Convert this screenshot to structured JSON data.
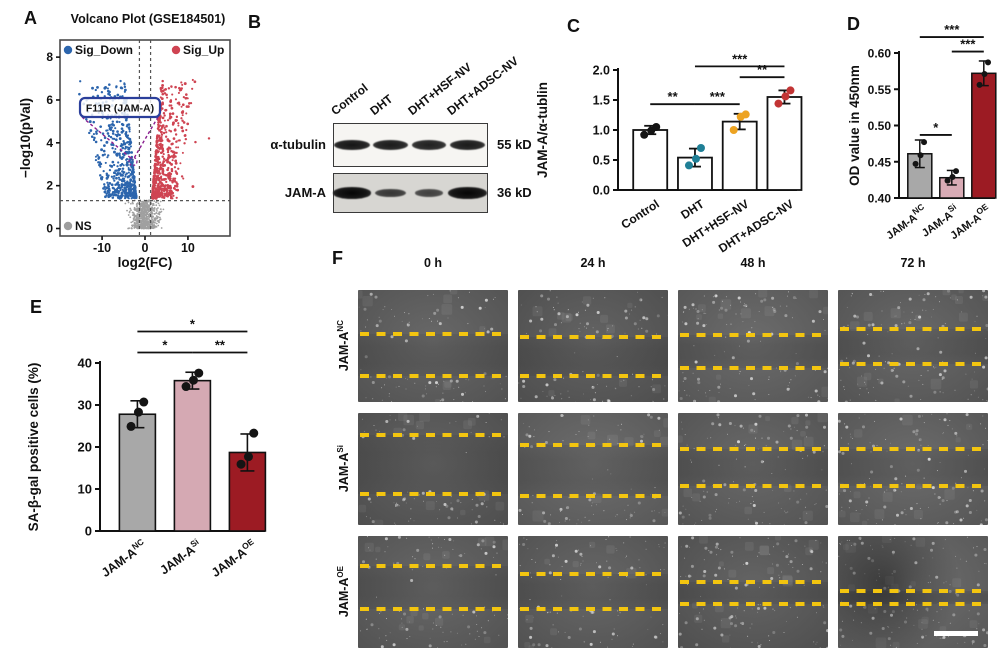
{
  "panels": {
    "A": {
      "label": "A",
      "title": "Volcano Plot (GSE184501)",
      "legend": [
        {
          "label": "Sig_Down",
          "color": "#2c65ad"
        },
        {
          "label": "Sig_Up",
          "color": "#cf4452"
        },
        {
          "label": "NS",
          "color": "#9e9e9e"
        }
      ],
      "annotation": {
        "text": "F11R (JAM-A)",
        "box_color": "#2b3f9b",
        "pointer_color": "#8a1f8f"
      }
    },
    "B": {
      "label": "B",
      "lanes": [
        "Control",
        "DHT",
        "DHT+HSF-NV",
        "DHT+ADSC-NV"
      ],
      "blots": [
        {
          "protein": "α-tubulin",
          "weight": "55 kD",
          "background": "#f6f5f2",
          "bands": [
            0.95,
            0.9,
            0.85,
            0.9
          ]
        },
        {
          "protein": "JAM-A",
          "weight": "36 kD",
          "background": "#d7d6d2",
          "bands": [
            1.1,
            0.6,
            0.48,
            1.15
          ]
        }
      ]
    },
    "C": {
      "label": "C"
    },
    "D": {
      "label": "D"
    },
    "E": {
      "label": "E"
    },
    "F": {
      "label": "F",
      "time_points": [
        "0 h",
        "24 h",
        "48 h",
        "72 h"
      ],
      "line_color": "#f3c50f",
      "rows": [
        {
          "base": "JAM-A",
          "sup": "NC",
          "gaps": [
            [
              39,
              77
            ],
            [
              42,
              77
            ],
            [
              40,
              70
            ],
            [
              35,
              66
            ]
          ]
        },
        {
          "base": "JAM-A",
          "sup": "Si",
          "gaps": [
            [
              20,
              72
            ],
            [
              29,
              74
            ],
            [
              32,
              65
            ],
            [
              32,
              65
            ]
          ]
        },
        {
          "base": "JAM-A",
          "sup": "OE",
          "gaps": [
            [
              27,
              65
            ],
            [
              34,
              65
            ],
            [
              41,
              61
            ],
            [
              49,
              61
            ]
          ]
        }
      ],
      "scale_bar": {
        "present": true
      }
    }
  },
  "chart_data": [
    {
      "id": "volcano",
      "type": "scatter",
      "title": "Volcano Plot (GSE184501)",
      "xlabel": "log2(FC)",
      "ylabel": "−log10(pVal)",
      "xlim": [
        -19.8,
        19.8
      ],
      "ylim": [
        0,
        8.8
      ],
      "xticks": [
        -10,
        0,
        10
      ],
      "yticks": [
        0,
        2,
        4,
        6,
        8
      ],
      "threshold_x": [
        -1.3,
        1.3
      ],
      "threshold_y": 1.3,
      "groups": [
        {
          "name": "Sig_Down",
          "color": "#2c65ad",
          "count": 560
        },
        {
          "name": "Sig_Up",
          "color": "#cf4452",
          "count": 560
        },
        {
          "name": "NS",
          "color": "#a0a0a0",
          "count": 650
        }
      ],
      "highlight": {
        "gene": "F11R (JAM-A)",
        "x": -2.8,
        "y": 3.2
      }
    },
    {
      "id": "jam-a-tubulin",
      "type": "bar",
      "ylabel": "JAM-A/α-tublin",
      "categories": [
        "Control",
        "DHT",
        "DHT+HSF-NV",
        "DHT+ADSC-NV"
      ],
      "values": [
        1.0,
        0.54,
        1.14,
        1.55
      ],
      "errors": [
        0.07,
        0.15,
        0.13,
        0.11
      ],
      "points": [
        [
          0.92,
          0.99,
          1.05
        ],
        [
          0.41,
          0.52,
          0.7
        ],
        [
          1.0,
          1.22,
          1.26
        ],
        [
          1.44,
          1.56,
          1.66
        ]
      ],
      "bar_fill": [
        "#ffffff",
        "#ffffff",
        "#ffffff",
        "#ffffff"
      ],
      "point_colors": [
        "#141414",
        "#1f7f96",
        "#eda321",
        "#c23434"
      ],
      "ylim": [
        0,
        2.0
      ],
      "yticks": [
        0,
        0.5,
        1.0,
        1.5,
        2.0
      ],
      "ytick_labels": [
        "0.0",
        "0.5",
        "1.0",
        "1.5",
        "2.0"
      ],
      "significance": [
        {
          "from": 0,
          "to": 1,
          "label": "**",
          "y": 1.43
        },
        {
          "from": 1,
          "to": 2,
          "label": "***",
          "y": 1.43
        },
        {
          "from": 2,
          "to": 3,
          "label": "**",
          "y": 1.88
        },
        {
          "from": 1,
          "to": 3,
          "label": "***",
          "y": 2.06
        }
      ]
    },
    {
      "id": "od-450",
      "type": "bar",
      "ylabel": "OD value in 450nm",
      "categories": [
        {
          "base": "JAM-A",
          "sup": "NC"
        },
        {
          "base": "JAM-A",
          "sup": "Si"
        },
        {
          "base": "JAM-A",
          "sup": "OE"
        }
      ],
      "values": [
        0.461,
        0.428,
        0.572
      ],
      "errors": [
        0.019,
        0.01,
        0.017
      ],
      "points": [
        [
          0.447,
          0.459,
          0.477
        ],
        [
          0.424,
          0.429,
          0.437
        ],
        [
          0.556,
          0.571,
          0.587
        ]
      ],
      "bar_fill": [
        "#a8a8a8",
        "#d9abb5",
        "#9c1b23"
      ],
      "point_colors": [
        "#141414",
        "#141414",
        "#141414"
      ],
      "ylim": [
        0.4,
        0.6
      ],
      "yticks": [
        0.4,
        0.45,
        0.5,
        0.55,
        0.6
      ],
      "ytick_labels": [
        "0.40",
        "0.45",
        "0.50",
        "0.55",
        "0.60"
      ],
      "significance": [
        {
          "from": 0,
          "to": 1,
          "label": "*",
          "y": 0.487
        },
        {
          "from": 1,
          "to": 2,
          "label": "***",
          "y": 0.602
        },
        {
          "from": 0,
          "to": 2,
          "label": "***",
          "y": 0.622
        }
      ]
    },
    {
      "id": "sa-b-gal",
      "type": "bar",
      "ylabel": "SA-β-gal positive cells (%)",
      "categories": [
        {
          "base": "JAM-A",
          "sup": "NC"
        },
        {
          "base": "JAM-A",
          "sup": "Si"
        },
        {
          "base": "JAM-A",
          "sup": "OE"
        }
      ],
      "values": [
        27.8,
        35.8,
        18.7
      ],
      "errors": [
        3.2,
        2.0,
        4.4
      ],
      "points": [
        [
          24.9,
          28.3,
          30.7
        ],
        [
          34.4,
          35.9,
          37.6
        ],
        [
          15.9,
          17.7,
          23.3
        ]
      ],
      "bar_fill": [
        "#a8a8a8",
        "#d5a9b3",
        "#9c1b23"
      ],
      "point_colors": [
        "#141414",
        "#141414",
        "#141414"
      ],
      "ylim": [
        0,
        40
      ],
      "yticks": [
        0,
        10,
        20,
        30,
        40
      ],
      "ytick_labels": [
        "0",
        "10",
        "20",
        "30",
        "40"
      ],
      "significance": [
        {
          "from": 0,
          "to": 1,
          "label": "*",
          "y": 42.5
        },
        {
          "from": 1,
          "to": 2,
          "label": "**",
          "y": 42.5
        },
        {
          "from": 0,
          "to": 2,
          "label": "*",
          "y": 47.5
        }
      ]
    }
  ]
}
